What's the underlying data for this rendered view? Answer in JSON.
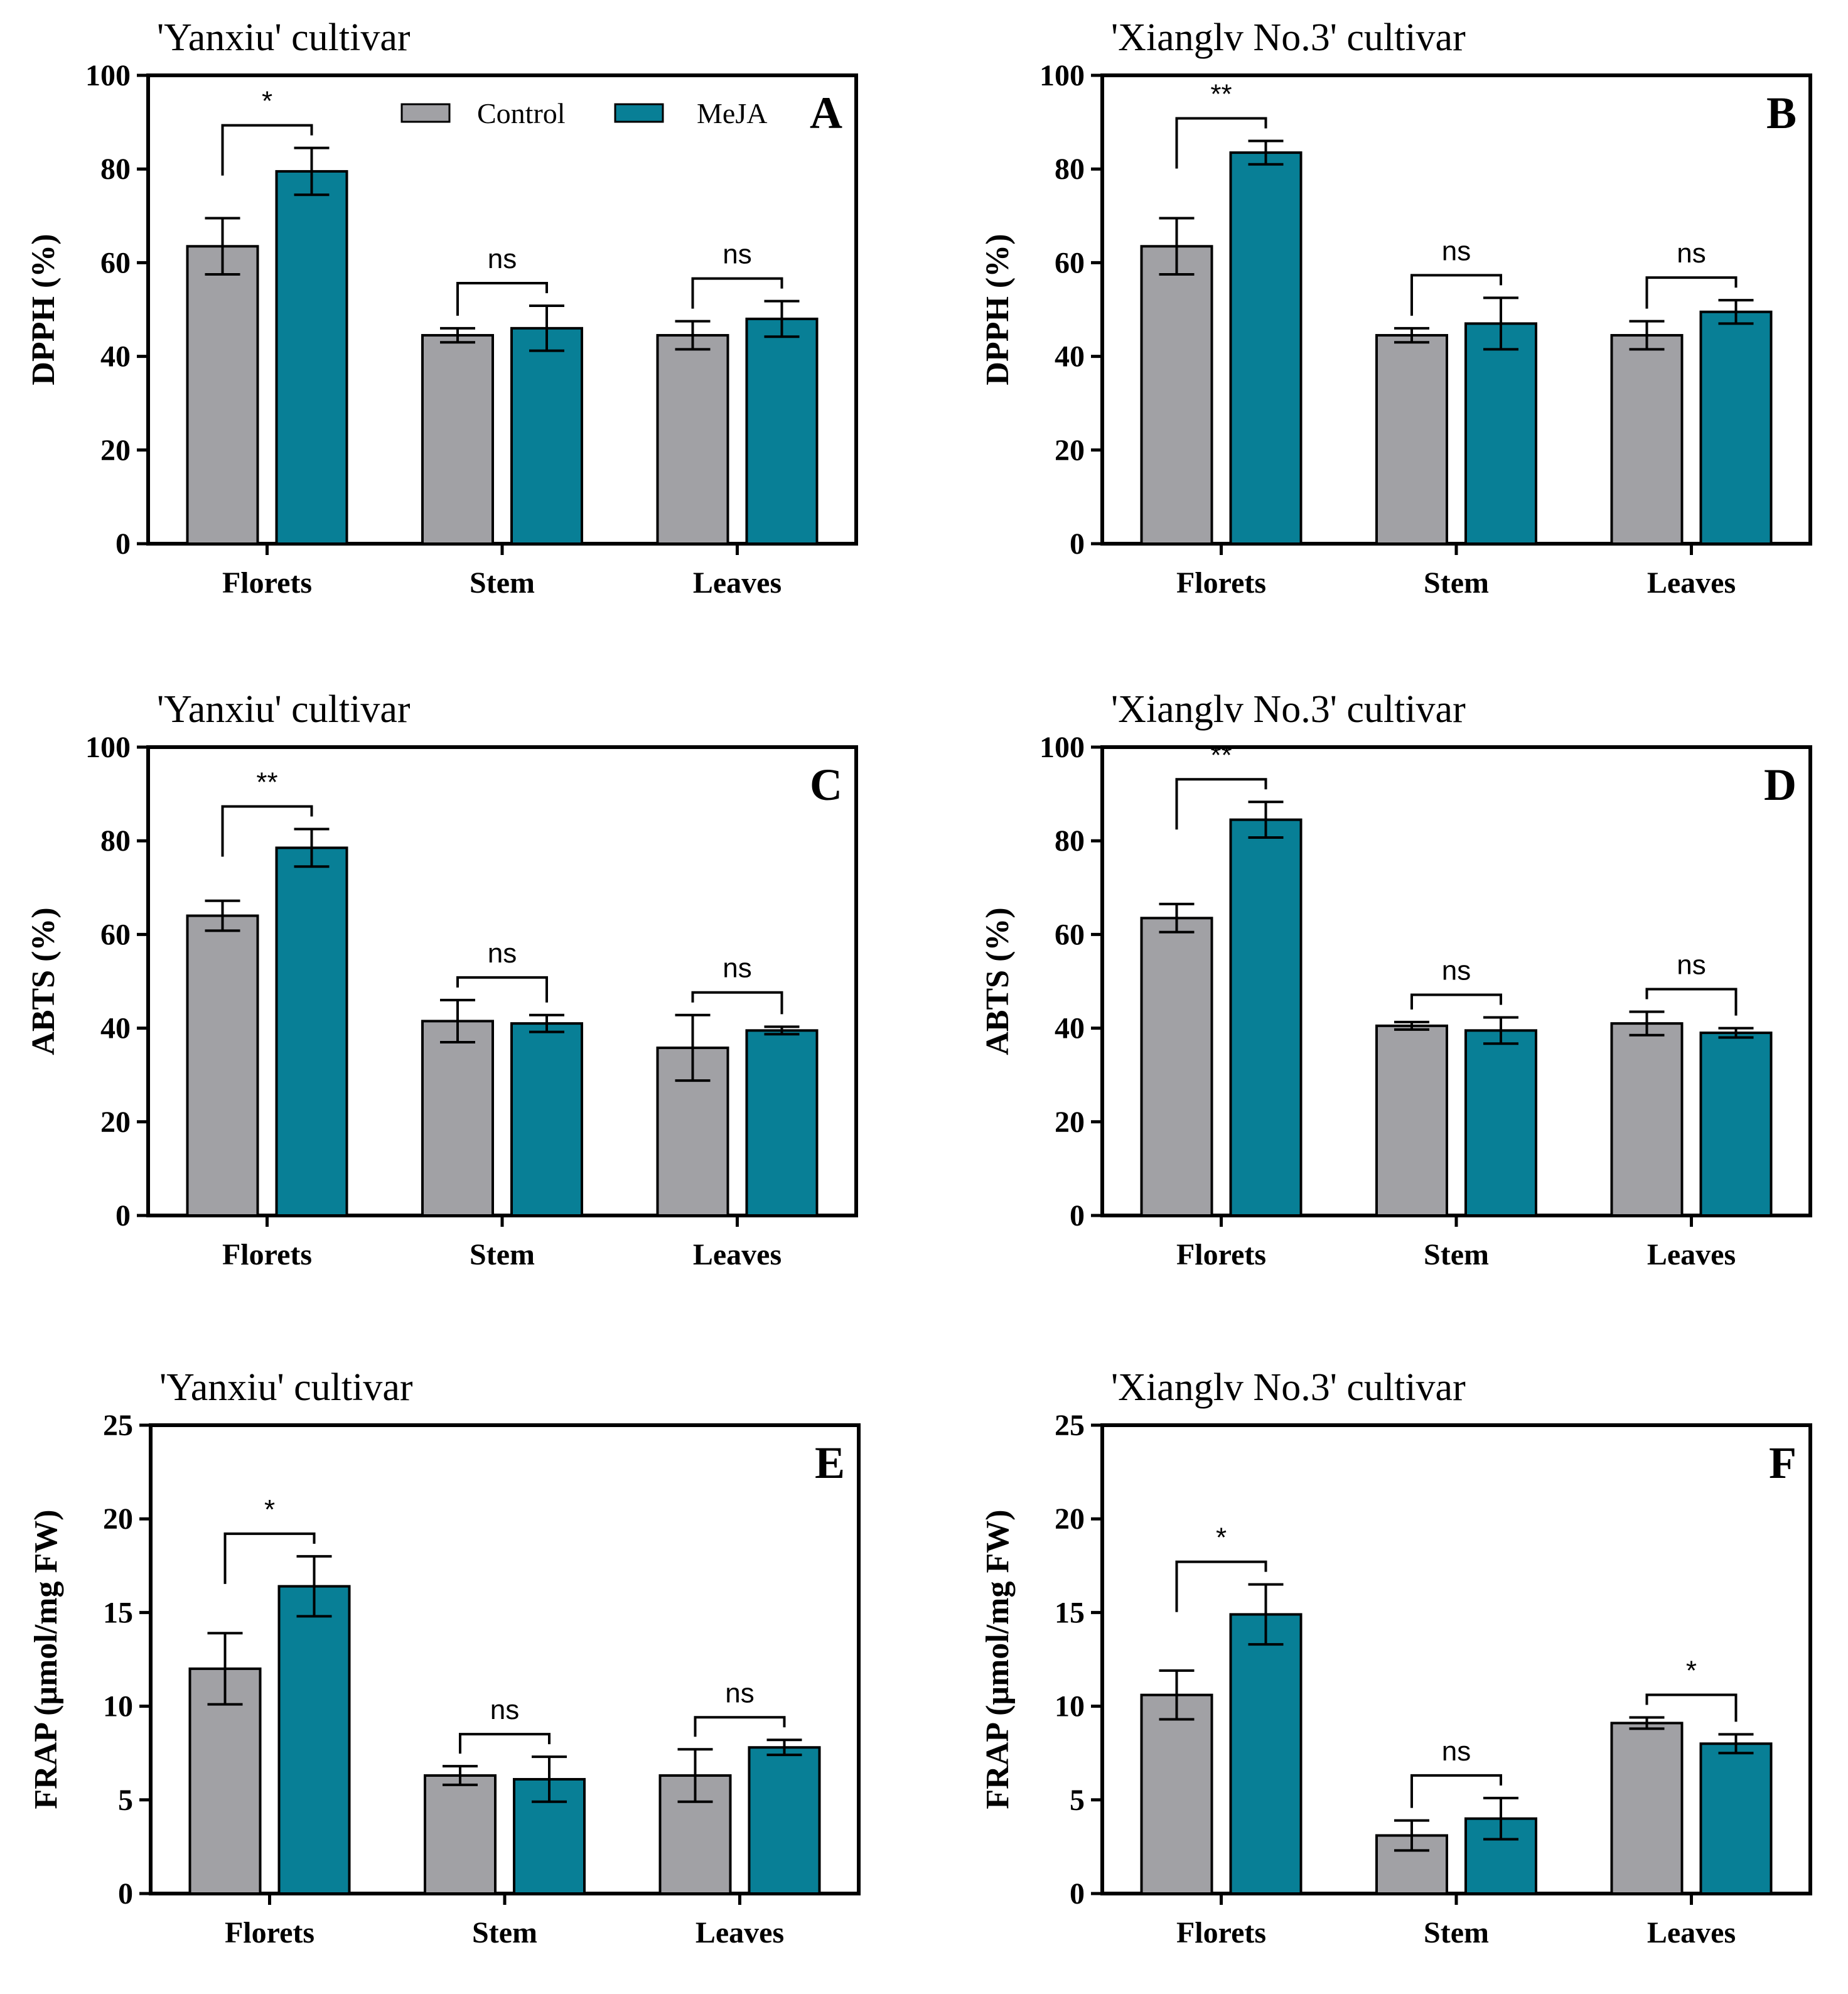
{
  "chart_data": [
    {
      "id": "A",
      "type": "bar",
      "title": "'Yanxiu' cultivar",
      "ylabel": "DPPH (%)",
      "ylim": [
        0,
        100
      ],
      "yticks": [
        0,
        20,
        40,
        60,
        80,
        100
      ],
      "categories": [
        "Florets",
        "Stem",
        "Leaves"
      ],
      "series": [
        {
          "name": "Control",
          "values": [
            63.5,
            44.5,
            44.5
          ],
          "errors": [
            6,
            1.5,
            3
          ]
        },
        {
          "name": "MeJA",
          "values": [
            79.5,
            46,
            48
          ],
          "errors": [
            5,
            4.8,
            3.8
          ]
        }
      ],
      "significance": [
        "*",
        "ns",
        "ns"
      ]
    },
    {
      "id": "B",
      "type": "bar",
      "title": "'Xianglv No.3' cultivar",
      "ylabel": "DPPH (%)",
      "ylim": [
        0,
        100
      ],
      "yticks": [
        0,
        20,
        40,
        60,
        80,
        100
      ],
      "categories": [
        "Florets",
        "Stem",
        "Leaves"
      ],
      "series": [
        {
          "name": "Control",
          "values": [
            63.5,
            44.5,
            44.5
          ],
          "errors": [
            6,
            1.5,
            3
          ]
        },
        {
          "name": "MeJA",
          "values": [
            83.5,
            47,
            49.5
          ],
          "errors": [
            2.5,
            5.5,
            2.5
          ]
        }
      ],
      "significance": [
        "**",
        "ns",
        "ns"
      ]
    },
    {
      "id": "C",
      "type": "bar",
      "title": "'Yanxiu' cultivar",
      "ylabel": "ABTS (%)",
      "ylim": [
        0,
        100
      ],
      "yticks": [
        0,
        20,
        40,
        60,
        80,
        100
      ],
      "categories": [
        "Florets",
        "Stem",
        "Leaves"
      ],
      "series": [
        {
          "name": "Control",
          "values": [
            64,
            41.5,
            35.8
          ],
          "errors": [
            3.2,
            4.5,
            7
          ]
        },
        {
          "name": "MeJA",
          "values": [
            78.5,
            41,
            39.5
          ],
          "errors": [
            4,
            1.8,
            0.8
          ]
        }
      ],
      "significance": [
        "**",
        "ns",
        "ns"
      ]
    },
    {
      "id": "D",
      "type": "bar",
      "title": "'Xianglv No.3' cultivar",
      "ylabel": "ABTS (%)",
      "ylim": [
        0,
        100
      ],
      "yticks": [
        0,
        20,
        40,
        60,
        80,
        100
      ],
      "categories": [
        "Florets",
        "Stem",
        "Leaves"
      ],
      "series": [
        {
          "name": "Control",
          "values": [
            63.5,
            40.5,
            41
          ],
          "errors": [
            3,
            0.8,
            2.5
          ]
        },
        {
          "name": "MeJA",
          "values": [
            84.5,
            39.5,
            39
          ],
          "errors": [
            3.8,
            2.8,
            1
          ]
        }
      ],
      "significance": [
        "**",
        "ns",
        "ns"
      ]
    },
    {
      "id": "E",
      "type": "bar",
      "title": "'Yanxiu' cultivar",
      "ylabel": "FRAP (μmol/mg FW)",
      "ylim": [
        0,
        25
      ],
      "yticks": [
        0,
        5,
        10,
        15,
        20,
        25
      ],
      "categories": [
        "Florets",
        "Stem",
        "Leaves"
      ],
      "series": [
        {
          "name": "Control",
          "values": [
            12,
            6.3,
            6.3
          ],
          "errors": [
            1.9,
            0.5,
            1.4
          ]
        },
        {
          "name": "MeJA",
          "values": [
            16.4,
            6.1,
            7.8
          ],
          "errors": [
            1.6,
            1.2,
            0.4
          ]
        }
      ],
      "significance": [
        "*",
        "ns",
        "ns"
      ]
    },
    {
      "id": "F",
      "type": "bar",
      "title": "'Xianglv No.3' cultivar",
      "ylabel": "FRAP (μmol/mg FW)",
      "ylim": [
        0,
        25
      ],
      "yticks": [
        0,
        5,
        10,
        15,
        20,
        25
      ],
      "categories": [
        "Florets",
        "Stem",
        "Leaves"
      ],
      "series": [
        {
          "name": "Control",
          "values": [
            10.6,
            3.1,
            9.1
          ],
          "errors": [
            1.3,
            0.8,
            0.3
          ]
        },
        {
          "name": "MeJA",
          "values": [
            14.9,
            4,
            8
          ],
          "errors": [
            1.6,
            1.1,
            0.5
          ]
        }
      ],
      "significance": [
        "*",
        "ns",
        "*"
      ]
    }
  ],
  "legend": [
    {
      "label": "Control",
      "color": "#a1a1a5"
    },
    {
      "label": "MeJA",
      "color": "#087f96"
    }
  ]
}
